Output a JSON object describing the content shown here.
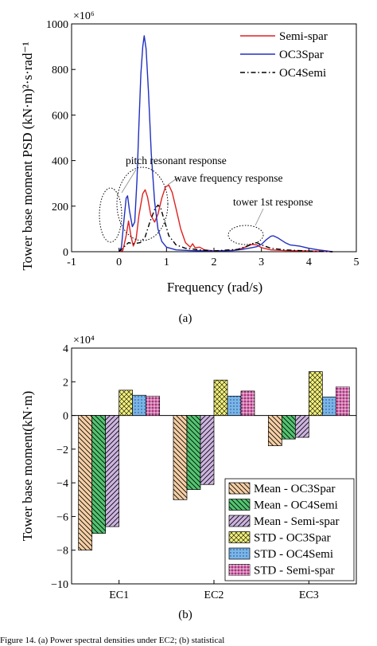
{
  "chart_data": [
    {
      "type": "line",
      "panel_label": "(a)",
      "title": "",
      "xlabel": "Frequency (rad/s)",
      "ylabel": "Tower base moment PSD (kN·m)²·s·rad⁻¹",
      "multiplier": "×10⁶",
      "xlim": [
        -1,
        5
      ],
      "ylim": [
        0,
        1000
      ],
      "xticks": [
        "-1",
        "0",
        "1",
        "2",
        "3",
        "4",
        "5"
      ],
      "yticks": [
        "0",
        "200",
        "400",
        "600",
        "800",
        "1000"
      ],
      "grid": false,
      "legend": "top-right",
      "series": [
        {
          "name": "Semi-spar",
          "color": "#e02020",
          "style": "solid",
          "points": [
            [
              0,
              0
            ],
            [
              0.08,
              5
            ],
            [
              0.15,
              70
            ],
            [
              0.2,
              135
            ],
            [
              0.25,
              70
            ],
            [
              0.3,
              25
            ],
            [
              0.36,
              55
            ],
            [
              0.42,
              160
            ],
            [
              0.5,
              255
            ],
            [
              0.55,
              272
            ],
            [
              0.6,
              240
            ],
            [
              0.67,
              160
            ],
            [
              0.75,
              130
            ],
            [
              0.82,
              165
            ],
            [
              0.9,
              235
            ],
            [
              0.98,
              285
            ],
            [
              1.05,
              292
            ],
            [
              1.12,
              260
            ],
            [
              1.2,
              190
            ],
            [
              1.3,
              100
            ],
            [
              1.4,
              40
            ],
            [
              1.5,
              20
            ],
            [
              1.55,
              35
            ],
            [
              1.6,
              18
            ],
            [
              1.7,
              20
            ],
            [
              1.8,
              8
            ],
            [
              2,
              3
            ],
            [
              2.4,
              6
            ],
            [
              2.6,
              15
            ],
            [
              2.8,
              32
            ],
            [
              2.9,
              30
            ],
            [
              3.0,
              18
            ],
            [
              3.2,
              8
            ],
            [
              3.5,
              5
            ],
            [
              4.0,
              3
            ],
            [
              4.5,
              0
            ]
          ]
        },
        {
          "name": "OC3Spar",
          "color": "#2030c0",
          "style": "solid",
          "points": [
            [
              0,
              0
            ],
            [
              0.05,
              20
            ],
            [
              0.1,
              130
            ],
            [
              0.15,
              235
            ],
            [
              0.18,
              245
            ],
            [
              0.22,
              180
            ],
            [
              0.28,
              110
            ],
            [
              0.33,
              130
            ],
            [
              0.38,
              320
            ],
            [
              0.42,
              560
            ],
            [
              0.46,
              780
            ],
            [
              0.5,
              900
            ],
            [
              0.53,
              948
            ],
            [
              0.57,
              890
            ],
            [
              0.62,
              700
            ],
            [
              0.68,
              430
            ],
            [
              0.75,
              220
            ],
            [
              0.82,
              100
            ],
            [
              0.9,
              45
            ],
            [
              1.0,
              20
            ],
            [
              1.2,
              8
            ],
            [
              1.5,
              5
            ],
            [
              2.0,
              3
            ],
            [
              2.4,
              5
            ],
            [
              2.6,
              10
            ],
            [
              2.8,
              18
            ],
            [
              2.9,
              22
            ],
            [
              3.0,
              32
            ],
            [
              3.1,
              52
            ],
            [
              3.2,
              68
            ],
            [
              3.25,
              70
            ],
            [
              3.35,
              60
            ],
            [
              3.5,
              40
            ],
            [
              3.6,
              30
            ],
            [
              3.8,
              25
            ],
            [
              4.0,
              15
            ],
            [
              4.2,
              8
            ],
            [
              4.5,
              0
            ]
          ]
        },
        {
          "name": "OC4Semi",
          "color": "#000000",
          "style": "dashdot",
          "points": [
            [
              0,
              0
            ],
            [
              0.1,
              20
            ],
            [
              0.2,
              40
            ],
            [
              0.3,
              35
            ],
            [
              0.45,
              40
            ],
            [
              0.55,
              65
            ],
            [
              0.65,
              130
            ],
            [
              0.75,
              185
            ],
            [
              0.82,
              205
            ],
            [
              0.88,
              190
            ],
            [
              0.95,
              140
            ],
            [
              1.05,
              70
            ],
            [
              1.2,
              30
            ],
            [
              1.4,
              15
            ],
            [
              1.7,
              8
            ],
            [
              2.0,
              4
            ],
            [
              2.5,
              10
            ],
            [
              2.7,
              25
            ],
            [
              2.8,
              35
            ],
            [
              2.9,
              40
            ],
            [
              3.0,
              30
            ],
            [
              3.2,
              15
            ],
            [
              3.5,
              8
            ],
            [
              4.0,
              3
            ],
            [
              4.5,
              0
            ]
          ]
        }
      ],
      "annotations": [
        {
          "text": "pitch resonant response"
        },
        {
          "text": "wave frequency response"
        },
        {
          "text": "tower 1st response"
        }
      ]
    },
    {
      "type": "bar",
      "panel_label": "(b)",
      "title": "",
      "xlabel": "",
      "ylabel": "Tower base moment(kN·m)",
      "multiplier": "×10⁴",
      "ylim": [
        -10,
        4
      ],
      "yticks": [
        "−10",
        "−8",
        "−6",
        "−4",
        "−2",
        "0",
        "2",
        "4"
      ],
      "grid": false,
      "legend": "bottom-right",
      "categories": [
        "EC1",
        "EC2",
        "EC3"
      ],
      "series": [
        {
          "name": "Mean - OC3Spar",
          "fill": "#f6cfa5",
          "pattern": "hatch-back",
          "values": [
            -8.0,
            -5.0,
            -1.8
          ]
        },
        {
          "name": "Mean - OC4Semi",
          "fill": "#52c470",
          "pattern": "hatch-back",
          "values": [
            -7.0,
            -4.4,
            -1.4
          ]
        },
        {
          "name": "Mean - Semi-spar",
          "fill": "#cdb4e0",
          "pattern": "hatch-fwd",
          "values": [
            -6.6,
            -4.1,
            -1.3
          ]
        },
        {
          "name": "STD - OC3Spar",
          "fill": "#f2f07a",
          "pattern": "crosshatch",
          "values": [
            1.5,
            2.1,
            2.6
          ]
        },
        {
          "name": "STD - OC4Semi",
          "fill": "#7ab6e8",
          "pattern": "dots",
          "values": [
            1.2,
            1.15,
            1.1
          ]
        },
        {
          "name": "STD - Semi-spar",
          "fill": "#b03080",
          "pattern": "grid",
          "values": [
            1.15,
            1.45,
            1.7
          ]
        }
      ]
    }
  ],
  "caption": "Figure 14. (a) Power spectral densities under EC2; (b) statistical"
}
